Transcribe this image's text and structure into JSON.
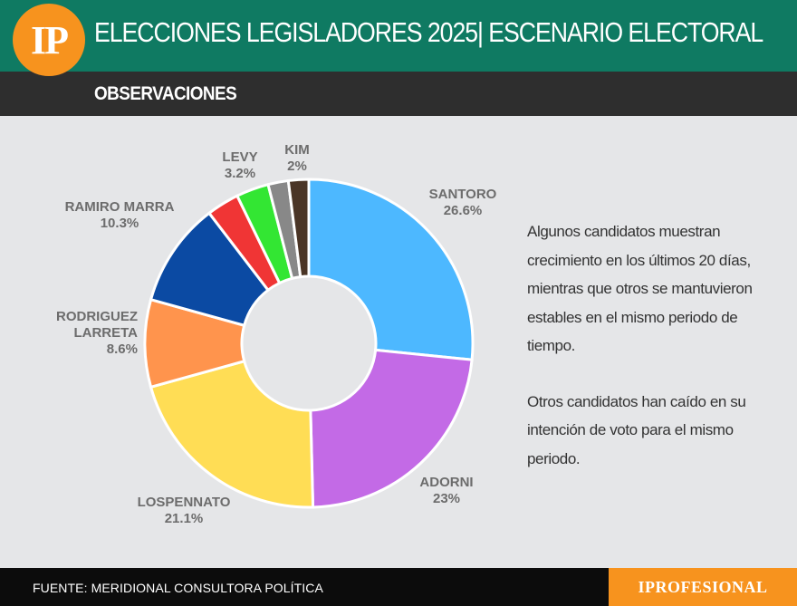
{
  "header": {
    "logo_text": "IP",
    "title": "ELECCIONES LEGISLADORES 2025| ESCENARIO ELECTORAL",
    "subtitle": "OBSERVACIONES"
  },
  "chart_data": {
    "type": "pie",
    "title": "",
    "donut": true,
    "slices": [
      {
        "name": "SANTORO",
        "value": 26.6,
        "value_label": "26.6%",
        "color": "#4db8ff"
      },
      {
        "name": "ADORNI",
        "value": 23,
        "value_label": "23%",
        "color": "#c36ae6"
      },
      {
        "name": "LOSPENNATO",
        "value": 21.1,
        "value_label": "21.1%",
        "color": "#ffdd55"
      },
      {
        "name": "RODRIGUEZ LARRETA",
        "name_lines": [
          "RODRIGUEZ",
          "LARRETA"
        ],
        "value": 8.6,
        "value_label": "8.6%",
        "color": "#ff944d"
      },
      {
        "name": "RAMIRO MARRA",
        "value": 10.3,
        "value_label": "10.3%",
        "color": "#0b4aa3"
      },
      {
        "name": "",
        "value": 3.2,
        "value_label": "",
        "color": "#f03535"
      },
      {
        "name": "LEVY",
        "value": 3.2,
        "value_label": "3.2%",
        "color": "#33e633"
      },
      {
        "name": "",
        "value": 2.0,
        "value_label": "",
        "color": "#888888"
      },
      {
        "name": "KIM",
        "value": 2,
        "value_label": "2%",
        "color": "#4a3526"
      }
    ]
  },
  "notes": {
    "paragraph_1": "Algunos candidatos muestran crecimiento en los últimos 20 días, mientras que otros se mantuvieron estables en el mismo periodo de tiempo.",
    "paragraph_2": "Otros candidatos han caído en su intención de voto para el mismo periodo."
  },
  "footer": {
    "source": "FUENTE: MERIDIONAL CONSULTORA POLÍTICA",
    "brand": "IPROFESIONAL"
  }
}
